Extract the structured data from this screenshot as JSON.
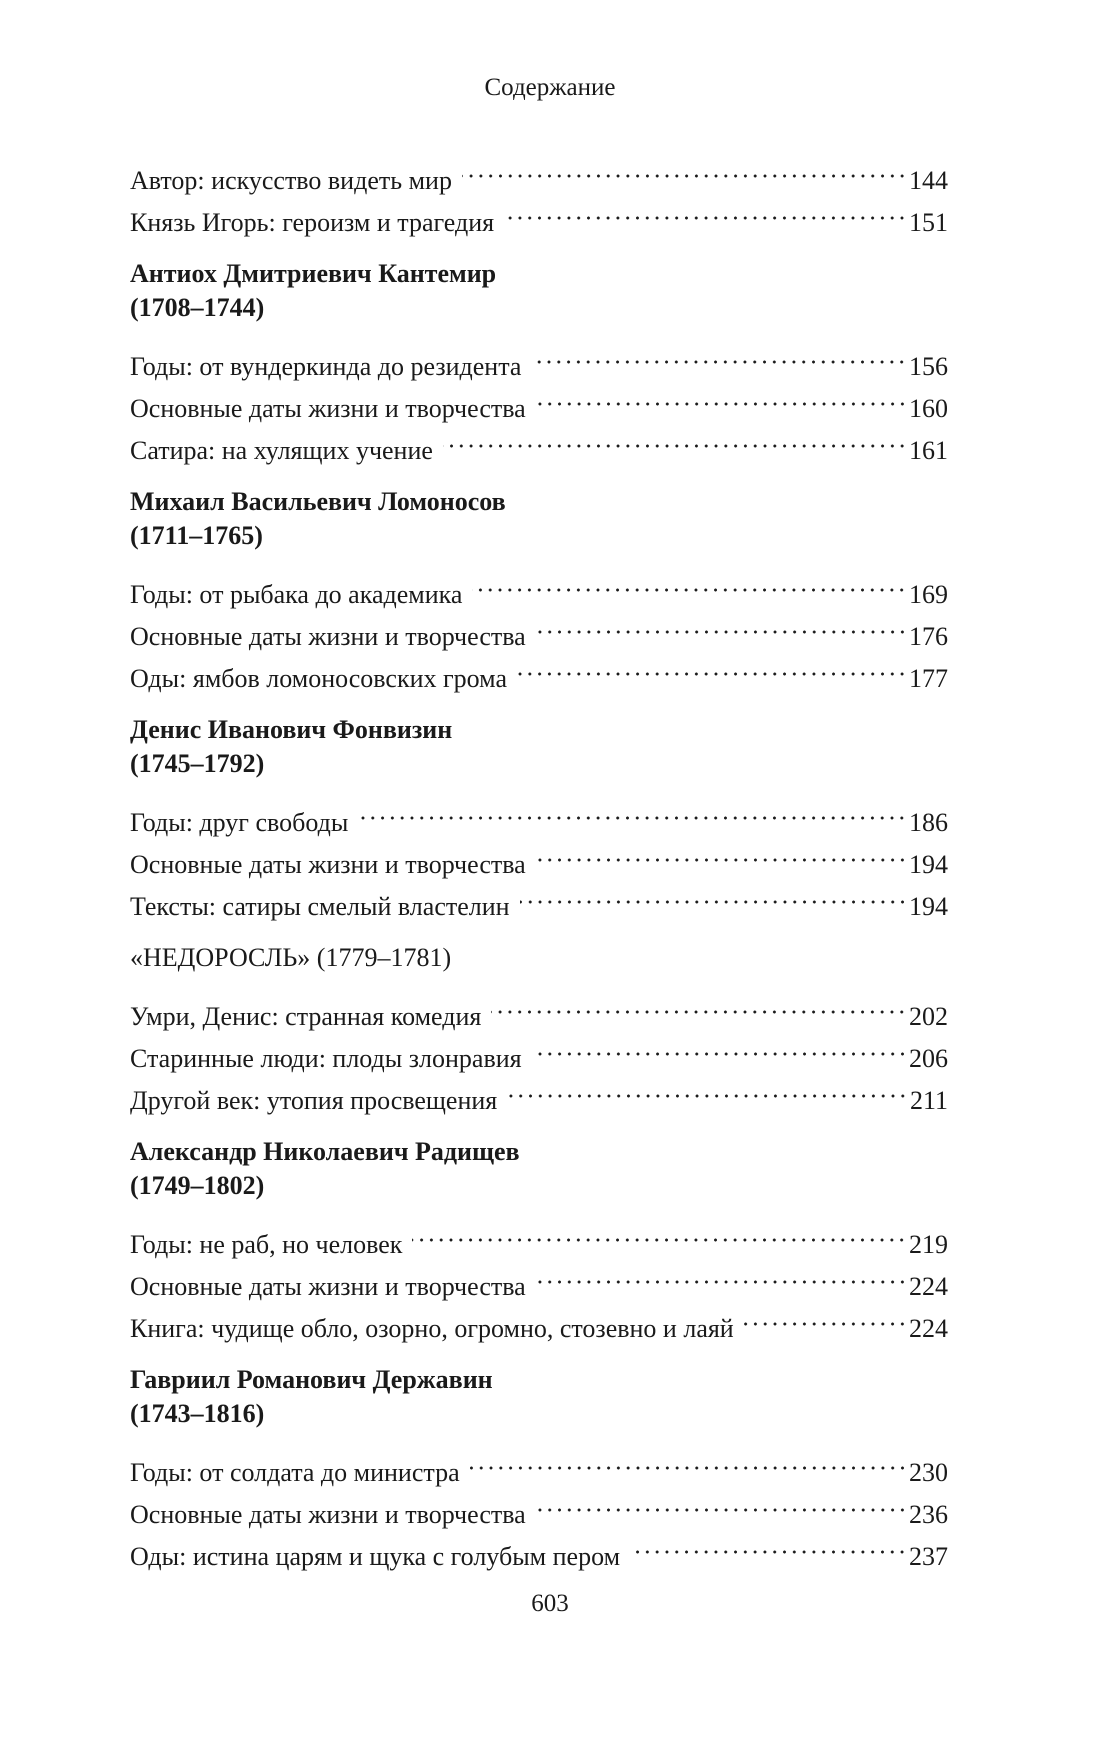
{
  "running_head": "Содержание",
  "sections": [
    {
      "heading": [],
      "entries": [
        {
          "title": "Автор: искусство видеть мир",
          "page": "144"
        },
        {
          "title": "Князь Игорь: героизм и трагедия",
          "page": "151"
        }
      ]
    },
    {
      "heading": [
        "Антиох Дмитриевич Кантемир",
        "(1708–1744)"
      ],
      "entries": [
        {
          "title": "Годы: от вундеркинда до резидента",
          "page": "156"
        },
        {
          "title": "Основные даты жизни и творчества",
          "page": "160"
        },
        {
          "title": "Сатира: на хулящих учение",
          "page": "161"
        }
      ]
    },
    {
      "heading": [
        "Михаил Васильевич Ломоносов",
        "(1711–1765)"
      ],
      "entries": [
        {
          "title": "Годы: от рыбака до академика",
          "page": "169"
        },
        {
          "title": "Основные даты жизни и творчества",
          "page": "176"
        },
        {
          "title": "Оды: ямбов ломоносовских грома",
          "page": "177"
        }
      ]
    },
    {
      "heading": [
        "Денис Иванович Фонвизин",
        "(1745–1792)"
      ],
      "entries": [
        {
          "title": "Годы: друг свободы",
          "page": "186"
        },
        {
          "title": "Основные даты жизни и творчества",
          "page": "194"
        },
        {
          "title": "Тексты: сатиры смелый властелин",
          "page": "194"
        }
      ]
    },
    {
      "heading": [
        "«НЕДОРОСЛЬ» (1779–1781)"
      ],
      "plain": true,
      "entries": [
        {
          "title": "Умри, Денис: странная комедия",
          "page": "202"
        },
        {
          "title": "Старинные люди: плоды злонравия",
          "page": "206"
        },
        {
          "title": "Другой век: утопия просвещения",
          "page": "211"
        }
      ]
    },
    {
      "heading": [
        "Александр Николаевич Радищев",
        "(1749–1802)"
      ],
      "entries": [
        {
          "title": "Годы: не раб, но человек",
          "page": "219"
        },
        {
          "title": "Основные даты жизни и творчества",
          "page": "224"
        },
        {
          "title": "Книга: чудище обло, озорно, огромно, стозевно и лаяй",
          "page": "224"
        }
      ]
    },
    {
      "heading": [
        "Гавриил Романович Державин",
        "(1743–1816)"
      ],
      "entries": [
        {
          "title": "Годы: от солдата до министра",
          "page": "230"
        },
        {
          "title": "Основные даты жизни и творчества",
          "page": "236"
        },
        {
          "title": "Оды: истина царям и щука с голубым пером",
          "page": "237"
        }
      ]
    }
  ],
  "folio": "603"
}
